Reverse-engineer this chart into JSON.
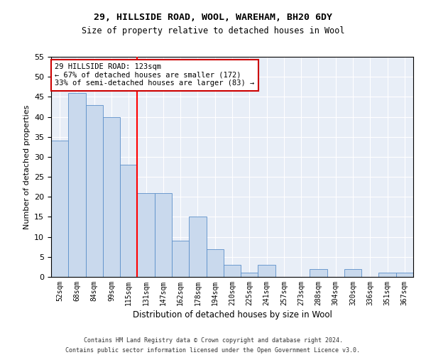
{
  "title1": "29, HILLSIDE ROAD, WOOL, WAREHAM, BH20 6DY",
  "title2": "Size of property relative to detached houses in Wool",
  "xlabel": "Distribution of detached houses by size in Wool",
  "ylabel": "Number of detached properties",
  "categories": [
    "52sqm",
    "68sqm",
    "84sqm",
    "99sqm",
    "115sqm",
    "131sqm",
    "147sqm",
    "162sqm",
    "178sqm",
    "194sqm",
    "210sqm",
    "225sqm",
    "241sqm",
    "257sqm",
    "273sqm",
    "288sqm",
    "304sqm",
    "320sqm",
    "336sqm",
    "351sqm",
    "367sqm"
  ],
  "values": [
    34,
    46,
    43,
    40,
    28,
    21,
    21,
    9,
    15,
    7,
    3,
    1,
    3,
    0,
    0,
    2,
    0,
    2,
    0,
    1,
    1
  ],
  "bar_color": "#c9d9ed",
  "bar_edge_color": "#5b8fc9",
  "background_color": "#e8eef7",
  "grid_color": "#ffffff",
  "ylim": [
    0,
    55
  ],
  "yticks": [
    0,
    5,
    10,
    15,
    20,
    25,
    30,
    35,
    40,
    45,
    50,
    55
  ],
  "vline_x_index": 4.5,
  "annotation_text": "29 HILLSIDE ROAD: 123sqm\n← 67% of detached houses are smaller (172)\n33% of semi-detached houses are larger (83) →",
  "annotation_box_color": "#ffffff",
  "annotation_box_edge_color": "#cc0000",
  "footer1": "Contains HM Land Registry data © Crown copyright and database right 2024.",
  "footer2": "Contains public sector information licensed under the Open Government Licence v3.0."
}
